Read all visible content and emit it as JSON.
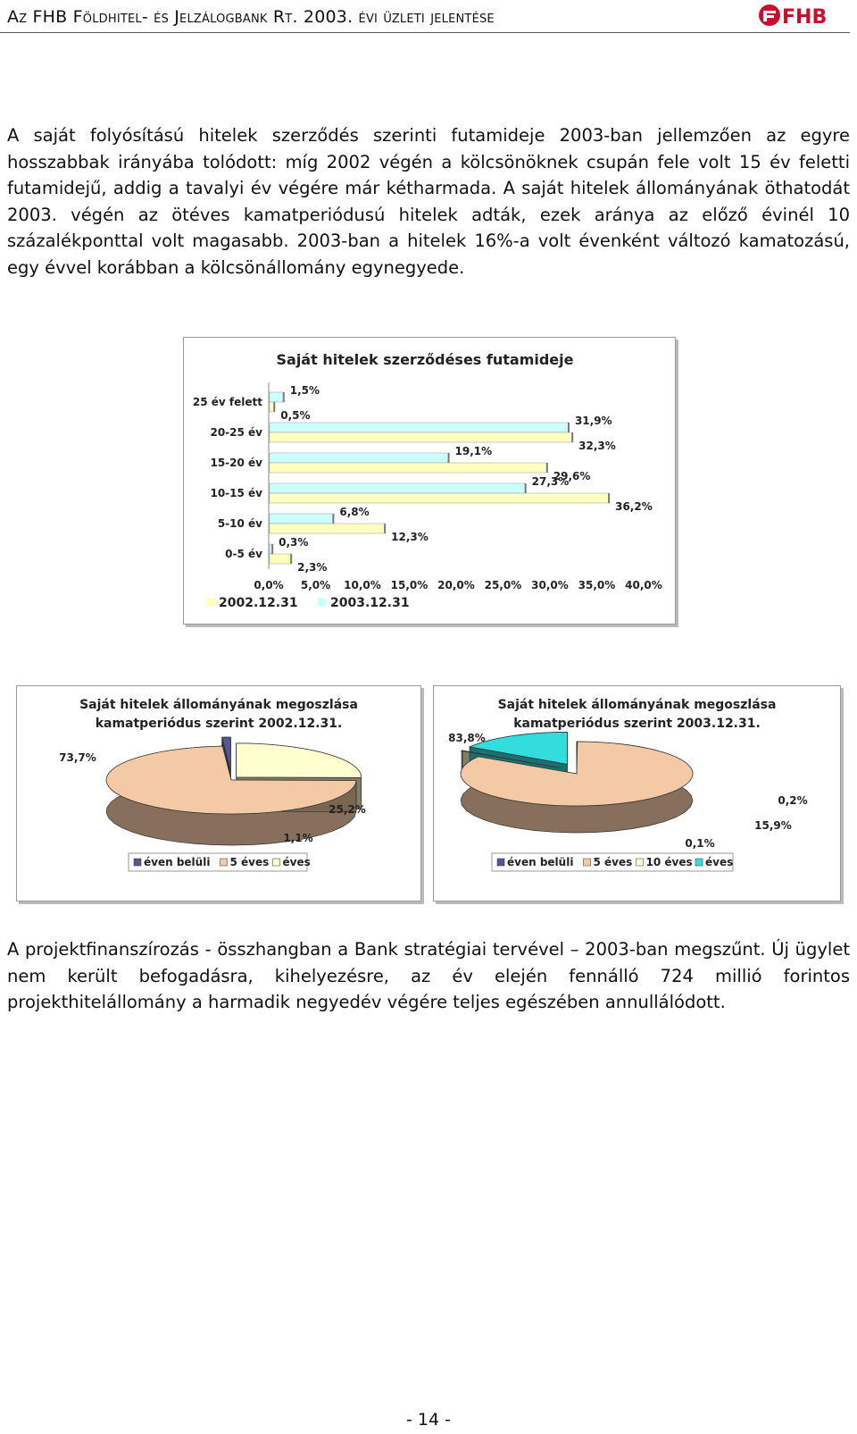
{
  "header": {
    "title": "Az FHB Földhitel- és Jelzálogbank Rt. 2003. évi üzleti jelentése",
    "logo_text": "FHB"
  },
  "paragraphs": [
    "A saját folyósítású hitelek szerződés szerinti futamideje 2003-ban jellemzően az egyre hosszabbak irányába tolódott: míg 2002 végén a kölcsönöknek csupán fele volt 15 év feletti futamidejű, addig a tavalyi év végére már kétharmada. A saját hitelek állományának öthatodát 2003. végén az ötéves kamatperiódusú hitelek adták, ezek aránya az előző évinél 10 százalékponttal volt magasabb. 2003-ban a hitelek 16%-a volt évenként változó kamatozású, egy évvel korábban a kölcsönállomány egynegyede.",
    "A projektfinanszírozás - összhangban a Bank stratégiai tervével – 2003-ban megszűnt. Új ügylet nem került befogadásra, kihelyezésre, az év elején fennálló 724 millió forintos projekthitelállomány a harmadik negyedév végére teljes egészében annullálódott."
  ],
  "page_number": "- 14 -",
  "chart_data": [
    {
      "type": "bar",
      "orientation": "horizontal",
      "title": "Saját hitelek szerződéses futamideje",
      "categories": [
        "25 év felett",
        "20-25 év",
        "15-20 év",
        "10-15 év",
        "5-10 év",
        "0-5 év"
      ],
      "series": [
        {
          "name": "2002.12.31",
          "color": "#FFFFC0",
          "values": [
            0.5,
            32.3,
            29.6,
            36.2,
            12.3,
            2.3
          ],
          "labels": [
            "0,5%",
            "32,3%",
            "29,6%",
            "36,2%",
            "12,3%",
            "2,3%"
          ]
        },
        {
          "name": "2003.12.31",
          "color": "#CCFFFF",
          "values": [
            1.5,
            31.9,
            19.1,
            27.3,
            6.8,
            0.3
          ],
          "labels": [
            "1,5%",
            "31,9%",
            "19,1%",
            "27,3%",
            "6,8%",
            "0,3%"
          ]
        }
      ],
      "xlim": [
        0,
        40
      ],
      "xticks": [
        "0,0%",
        "5,0%",
        "10,0%",
        "15,0%",
        "20,0%",
        "25,0%",
        "30,0%",
        "35,0%",
        "40,0%"
      ],
      "legend_position": "bottom-left",
      "grid": false
    },
    {
      "type": "pie",
      "title_lines": [
        "Saját hitelek állományának megoszlása",
        "kamatperiódus szerint 2002.12.31."
      ],
      "slices": [
        {
          "name": "éven belüli",
          "value": 25.2,
          "label": "25,2%",
          "color": "#FFFFD0"
        },
        {
          "name": "5 éves",
          "value": 73.7,
          "label": "73,7%",
          "color": "#F4C9A5"
        },
        {
          "name": "éves",
          "value": 1.1,
          "label": "1,1%",
          "color": "#555599"
        }
      ],
      "legend": [
        "éven belüli",
        "5 éves",
        "éves"
      ],
      "legend_colors": [
        "#555599",
        "#F4C9A5",
        "#FFFFD0"
      ]
    },
    {
      "type": "pie",
      "title_lines": [
        "Saját hitelek állományának megoszlása",
        "kamatperiódus szerint 2003.12.31."
      ],
      "slices": [
        {
          "name": "éven belüli",
          "value": 0.1,
          "label": "0,1%",
          "color": "#555599"
        },
        {
          "name": "5 éves",
          "value": 83.8,
          "label": "83,8%",
          "color": "#F4C9A5"
        },
        {
          "name": "10 éves",
          "value": 0.2,
          "label": "0,2%",
          "color": "#FFFFD0"
        },
        {
          "name": "éves",
          "value": 15.9,
          "label": "15,9%",
          "color": "#33DDDD"
        }
      ],
      "legend": [
        "éven belüli",
        "5 éves",
        "10 éves",
        "éves"
      ],
      "legend_colors": [
        "#555599",
        "#F4C9A5",
        "#FFFFD0",
        "#33DDDD"
      ]
    }
  ]
}
